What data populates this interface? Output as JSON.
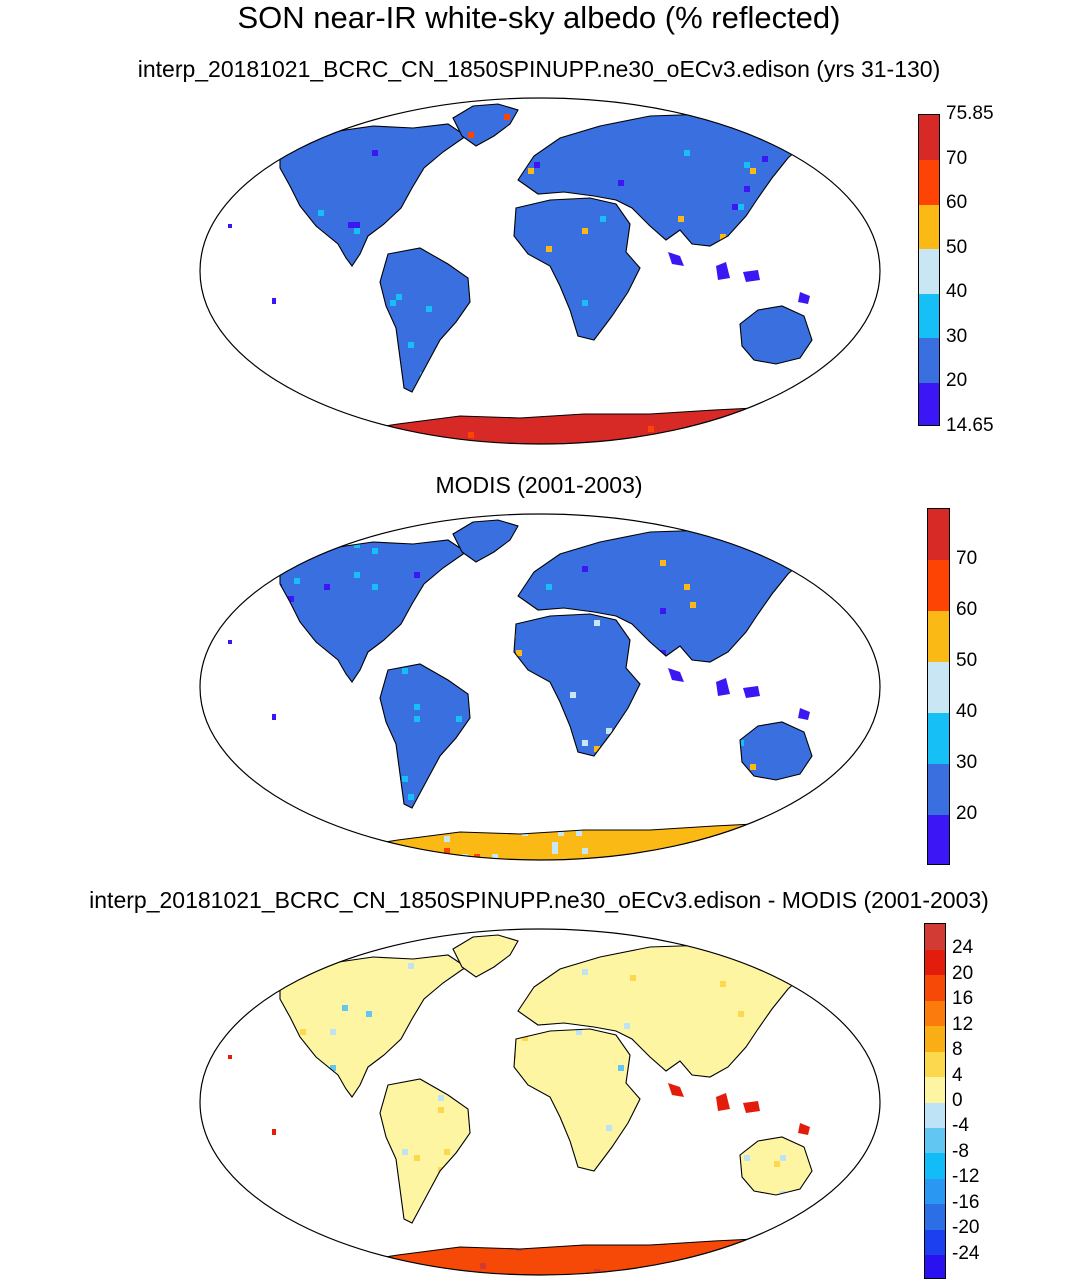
{
  "title": "SON near-IR white-sky albedo (% reflected)",
  "panels": [
    {
      "id": "model",
      "title": "interp_20181021_BCRC_CN_1850SPINUPP.ne30_oECv3.edison (yrs 31-130)",
      "colorbar": {
        "colors": [
          "#3c16f5",
          "#3a6fe0",
          "#16bff5",
          "#c8e6f4",
          "#fbb915",
          "#fd4404",
          "#d72a26"
        ],
        "labels": [
          "14.65",
          "20",
          "30",
          "40",
          "50",
          "60",
          "70",
          "75.85"
        ]
      }
    },
    {
      "id": "obs",
      "title": "MODIS (2001-2003)",
      "colorbar": {
        "colors": [
          "#3c16f5",
          "#3a6fe0",
          "#16bff5",
          "#c8e6f4",
          "#fbb915",
          "#fd4404",
          "#d72a26"
        ],
        "labels": [
          "20",
          "30",
          "40",
          "50",
          "60",
          "70"
        ]
      }
    },
    {
      "id": "diff",
      "title": "interp_20181021_BCRC_CN_1850SPINUPP.ne30_oECv3.edison - MODIS (2001-2003)",
      "colorbar": {
        "colors": [
          "#2a12f0",
          "#1c3ff0",
          "#2c6ee6",
          "#2a97f2",
          "#12bdf7",
          "#62c6f2",
          "#bfe3f6",
          "#fdf5a2",
          "#fcd84e",
          "#f9ae16",
          "#fb7b0c",
          "#f64807",
          "#e21d0b",
          "#d23a34"
        ],
        "labels": [
          "-24",
          "-20",
          "-16",
          "-12",
          "-8",
          "-4",
          "0",
          "4",
          "8",
          "12",
          "16",
          "20",
          "24"
        ]
      }
    }
  ],
  "legend": {
    "land_color": "#3a6fe0",
    "diff_land_color": "#fdf5a2",
    "antarctic_model": "#d72a26",
    "antarctic_obs": "#fbb915",
    "antarctic_diff": "#f64807",
    "coast_color": "#000000"
  }
}
